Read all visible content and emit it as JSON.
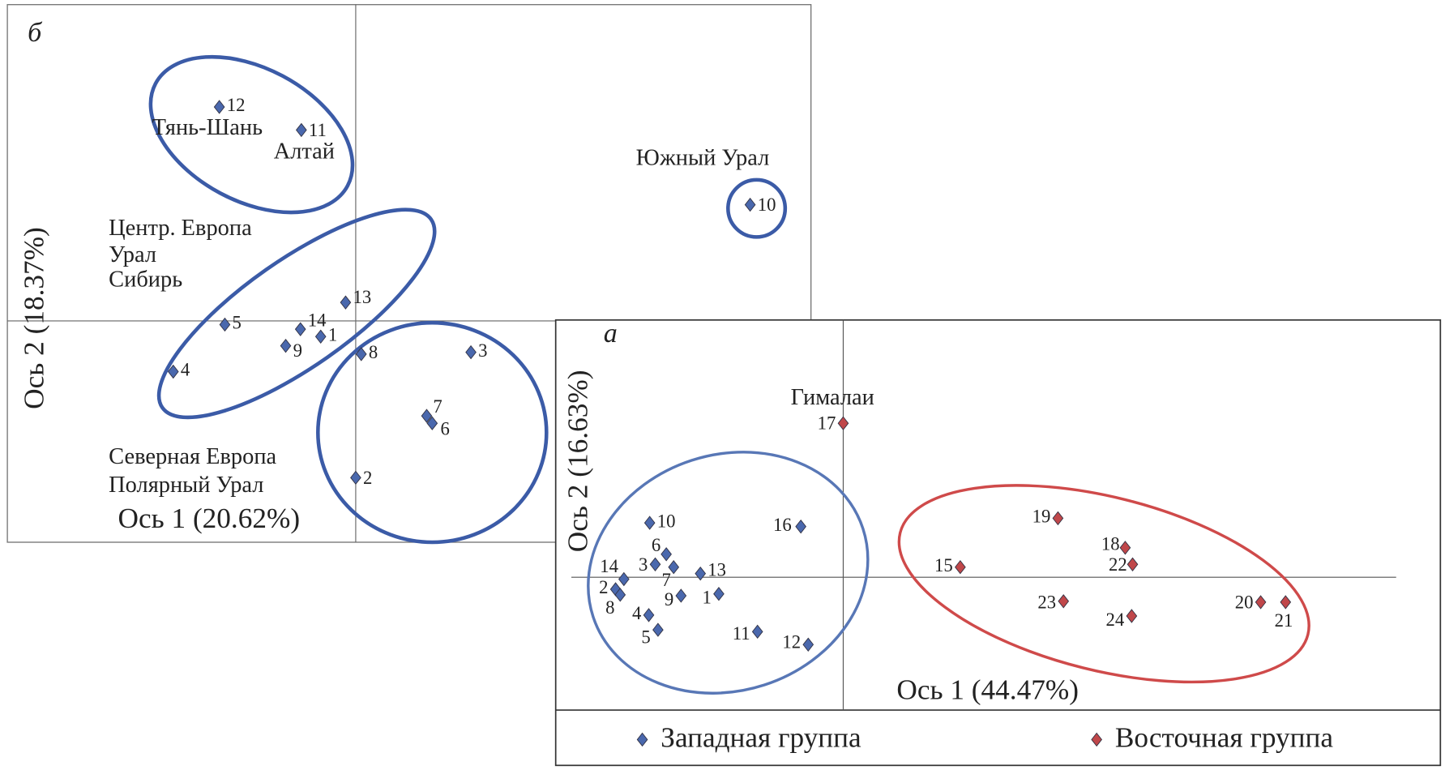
{
  "chart_data": [
    {
      "type": "scatter",
      "title": "б",
      "xlabel": "Ось 1 (20.62%)",
      "ylabel": "Ось 2 (18.37%)",
      "xlim": [
        -378,
        494
      ],
      "ylim": [
        -240,
        343
      ],
      "color": "#4a68ad",
      "labels": [
        "1",
        "2",
        "3",
        "4",
        "5",
        "6",
        "7",
        "8",
        "9",
        "10",
        "11",
        "12",
        "13",
        "14"
      ],
      "x": [
        -38,
        0,
        125,
        -198,
        -142,
        83,
        77,
        6,
        -76,
        428,
        -59,
        -148,
        -11,
        -60
      ],
      "y": [
        -17,
        -170,
        -34,
        -55,
        -4,
        -111,
        -103,
        -36,
        -27,
        126,
        207,
        232,
        20,
        -9
      ],
      "annotations": [
        "Тянь-Шань",
        "Алтай",
        "Южный Урал",
        "Центр. Европа",
        "Урал",
        "Сибирь",
        "Северная Европа",
        "Полярный Урал"
      ]
    },
    {
      "type": "scatter",
      "title": "а",
      "xlabel": "Ось 1 (44.47%)",
      "ylabel": "Ось 2 (16.63%)",
      "xlim": [
        -312,
        648
      ],
      "ylim": [
        -144,
        279
      ],
      "series": [
        {
          "name": "Западная группа",
          "color": "#4a68ad",
          "labels": [
            "1",
            "2",
            "3",
            "4",
            "5",
            "6",
            "7",
            "8",
            "9",
            "10",
            "11",
            "12",
            "13",
            "14",
            "16"
          ],
          "x": [
            -135,
            -247,
            -204,
            -211,
            -201,
            -192,
            -184,
            -242,
            -176,
            -210,
            -93,
            -38,
            -155,
            -238,
            -46
          ],
          "y": [
            -18,
            -13,
            14,
            -41,
            -57,
            25,
            11,
            -19,
            -20,
            59,
            -59,
            -73,
            4,
            -2,
            55
          ]
        },
        {
          "name": "Восточная группа",
          "color": "#c0474a",
          "labels": [
            "15",
            "17",
            "18",
            "19",
            "20",
            "21",
            "22",
            "23",
            "24"
          ],
          "x": [
            127,
            0,
            306,
            233,
            453,
            480,
            314,
            239,
            313
          ],
          "y": [
            11,
            167,
            32,
            64,
            -27,
            -27,
            14,
            -26,
            -42
          ]
        }
      ],
      "annotations": [
        "Гималаи"
      ]
    }
  ]
}
